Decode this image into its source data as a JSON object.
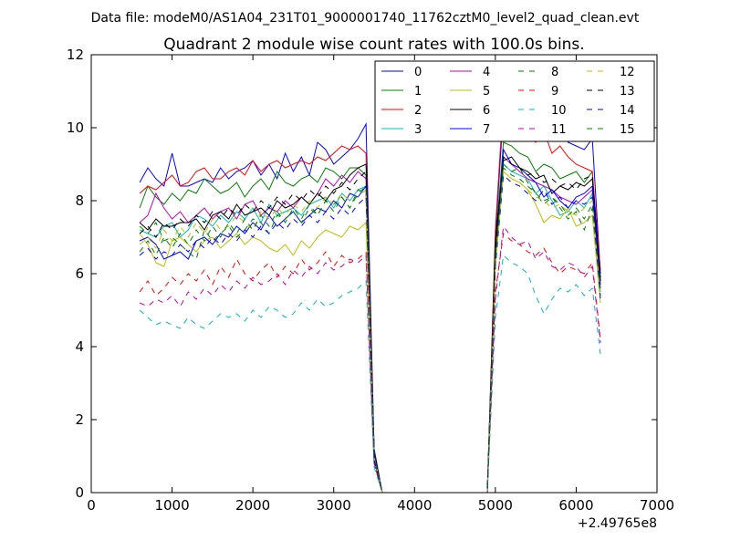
{
  "header_text": "Data file: modeM0/AS1A04_231T01_9000001740_11762cztM0_level2_quad_clean.evt",
  "chart_data": {
    "type": "line",
    "title": "Quadrant 2 module wise count rates with 100.0s bins.",
    "xlabel": "",
    "ylabel": "",
    "x_offset_label": "+2.49765e8",
    "xlim": [
      0,
      7000
    ],
    "ylim": [
      0,
      12
    ],
    "x_ticks": [
      0,
      1000,
      2000,
      3000,
      4000,
      5000,
      6000,
      7000
    ],
    "y_ticks": [
      0,
      2,
      4,
      6,
      8,
      10,
      12
    ],
    "grid": false,
    "legend_placement": "top-right",
    "legend_columns": 4,
    "x": [
      600,
      700,
      800,
      900,
      1000,
      1100,
      1200,
      1300,
      1400,
      1500,
      1600,
      1700,
      1800,
      1900,
      2000,
      2100,
      2200,
      2300,
      2400,
      2500,
      2600,
      2700,
      2800,
      2900,
      3000,
      3100,
      3200,
      3300,
      3400,
      3500,
      3600,
      3700,
      3800,
      3900,
      4000,
      4100,
      4200,
      4300,
      4400,
      4500,
      4600,
      4700,
      4800,
      4900,
      5000,
      5100,
      5200,
      5300,
      5400,
      5500,
      5600,
      5700,
      5800,
      5900,
      6000,
      6100,
      6200,
      6300
    ],
    "series": [
      {
        "name": "0",
        "color": "#0000ff",
        "dash": "solid",
        "values": [
          8.5,
          8.9,
          8.6,
          8.4,
          9.3,
          8.4,
          8.4,
          8.5,
          8.6,
          8.5,
          8.9,
          8.6,
          8.8,
          8.9,
          9.1,
          8.7,
          9.0,
          8.6,
          9.3,
          8.8,
          9.2,
          8.7,
          9.6,
          9.4,
          9.0,
          9.2,
          9.4,
          9.7,
          10.1,
          1.2,
          0,
          0,
          0,
          0,
          0,
          0,
          0,
          0,
          0,
          0,
          0,
          0,
          0,
          0,
          7.0,
          10.5,
          10.4,
          10.2,
          9.8,
          10.1,
          10.6,
          10.1,
          10.2,
          9.6,
          9.5,
          9.4,
          9.7,
          6.0
        ]
      },
      {
        "name": "1",
        "color": "#008000",
        "dash": "solid",
        "values": [
          7.8,
          8.4,
          8.1,
          7.9,
          8.2,
          8.0,
          8.3,
          8.2,
          8.6,
          8.4,
          8.2,
          8.3,
          8.5,
          8.1,
          8.4,
          8.6,
          8.3,
          8.8,
          8.5,
          8.4,
          8.6,
          8.7,
          8.5,
          8.9,
          8.8,
          8.6,
          8.9,
          8.9,
          8.7,
          1.0,
          0,
          0,
          0,
          0,
          0,
          0,
          0,
          0,
          0,
          0,
          0,
          0,
          0,
          0,
          6.8,
          9.6,
          9.5,
          9.3,
          9.2,
          8.8,
          9.0,
          8.9,
          8.6,
          8.7,
          8.8,
          8.5,
          8.8,
          5.8
        ]
      },
      {
        "name": "2",
        "color": "#ff0000",
        "dash": "solid",
        "values": [
          8.2,
          8.4,
          8.3,
          8.5,
          8.7,
          8.4,
          8.5,
          8.8,
          8.9,
          8.6,
          8.6,
          8.8,
          8.9,
          8.7,
          9.1,
          8.8,
          9.0,
          9.1,
          8.9,
          9.0,
          9.1,
          9.0,
          9.2,
          9.1,
          9.3,
          9.5,
          9.4,
          9.5,
          9.3,
          1.1,
          0,
          0,
          0,
          0,
          0,
          0,
          0,
          0,
          0,
          0,
          0,
          0,
          0,
          0,
          7.2,
          10.8,
          10.6,
          10.0,
          9.8,
          9.6,
          9.9,
          9.3,
          9.5,
          9.2,
          9.0,
          8.9,
          8.8,
          6.1
        ]
      },
      {
        "name": "3",
        "color": "#00bfbf",
        "dash": "solid",
        "values": [
          7.2,
          7.1,
          7.0,
          7.3,
          7.4,
          7.0,
          7.2,
          7.6,
          7.5,
          7.3,
          7.6,
          7.4,
          7.7,
          7.5,
          7.8,
          7.4,
          7.9,
          7.6,
          7.7,
          7.8,
          7.6,
          7.9,
          8.0,
          8.1,
          7.8,
          8.2,
          8.0,
          8.3,
          8.4,
          1.0,
          0,
          0,
          0,
          0,
          0,
          0,
          0,
          0,
          0,
          0,
          0,
          0,
          0,
          0,
          6.5,
          9.0,
          8.8,
          8.7,
          8.6,
          8.2,
          8.4,
          8.0,
          7.6,
          7.7,
          8.0,
          7.8,
          8.2,
          5.5
        ]
      },
      {
        "name": "4",
        "color": "#bf00bf",
        "dash": "solid",
        "values": [
          7.4,
          7.6,
          8.2,
          7.8,
          7.5,
          7.7,
          7.4,
          7.6,
          7.8,
          7.5,
          7.7,
          7.8,
          7.5,
          7.9,
          8.0,
          7.6,
          7.8,
          7.7,
          8.0,
          7.8,
          8.1,
          7.9,
          8.2,
          8.6,
          8.4,
          8.7,
          8.5,
          8.8,
          8.6,
          1.0,
          0,
          0,
          0,
          0,
          0,
          0,
          0,
          0,
          0,
          0,
          0,
          0,
          0,
          0,
          6.6,
          9.2,
          9.0,
          8.8,
          8.6,
          8.5,
          8.4,
          8.3,
          8.1,
          8.0,
          7.9,
          8.1,
          8.3,
          5.6
        ]
      },
      {
        "name": "5",
        "color": "#bfbf00",
        "dash": "solid",
        "values": [
          7.1,
          6.8,
          6.3,
          6.2,
          6.9,
          7.0,
          6.8,
          6.6,
          6.9,
          7.0,
          6.7,
          6.9,
          7.1,
          6.8,
          7.0,
          6.9,
          6.7,
          6.6,
          6.8,
          6.5,
          6.9,
          6.7,
          7.0,
          7.2,
          7.1,
          7.0,
          7.3,
          7.2,
          7.4,
          0.9,
          0,
          0,
          0,
          0,
          0,
          0,
          0,
          0,
          0,
          0,
          0,
          0,
          0,
          0,
          6.2,
          8.8,
          8.6,
          8.5,
          8.3,
          7.9,
          7.4,
          7.6,
          7.5,
          7.8,
          7.3,
          7.4,
          7.6,
          5.2
        ]
      },
      {
        "name": "6",
        "color": "#000000",
        "dash": "solid",
        "values": [
          7.4,
          7.2,
          7.5,
          7.3,
          7.3,
          7.4,
          7.4,
          7.5,
          7.2,
          7.6,
          7.7,
          7.5,
          7.9,
          7.6,
          7.7,
          7.8,
          7.6,
          8.0,
          7.8,
          7.9,
          8.1,
          7.9,
          8.2,
          8.0,
          8.3,
          8.4,
          8.7,
          8.9,
          9.0,
          1.1,
          0,
          0,
          0,
          0,
          0,
          0,
          0,
          0,
          0,
          0,
          0,
          0,
          0,
          0,
          6.9,
          9.1,
          9.2,
          8.9,
          8.8,
          8.6,
          8.7,
          8.2,
          8.4,
          8.3,
          8.5,
          8.4,
          8.6,
          5.9
        ]
      },
      {
        "name": "7",
        "color": "#0000ff",
        "dash": "solid",
        "values": [
          6.9,
          7.0,
          6.8,
          6.4,
          6.5,
          6.6,
          6.4,
          6.9,
          7.0,
          6.8,
          7.1,
          7.0,
          7.3,
          7.1,
          7.4,
          7.2,
          7.6,
          7.3,
          7.5,
          7.7,
          7.4,
          7.6,
          7.8,
          7.7,
          8.0,
          7.8,
          8.2,
          8.1,
          8.4,
          1.0,
          0,
          0,
          0,
          0,
          0,
          0,
          0,
          0,
          0,
          0,
          0,
          0,
          0,
          0,
          6.4,
          9.4,
          9.0,
          8.9,
          8.7,
          8.5,
          8.1,
          8.3,
          8.0,
          7.8,
          8.1,
          8.2,
          8.4,
          5.7
        ]
      },
      {
        "name": "8",
        "color": "#008000",
        "dash": "dashed",
        "values": [
          7.3,
          7.1,
          7.4,
          6.9,
          7.0,
          6.8,
          6.6,
          6.4,
          7.2,
          6.9,
          7.1,
          7.3,
          7.0,
          7.2,
          7.5,
          7.4,
          7.1,
          7.6,
          7.5,
          7.7,
          7.4,
          7.8,
          7.6,
          8.0,
          7.9,
          8.1,
          7.8,
          8.3,
          8.2,
          0.9,
          0,
          0,
          0,
          0,
          0,
          0,
          0,
          0,
          0,
          0,
          0,
          0,
          0,
          0,
          6.5,
          9.0,
          8.8,
          8.9,
          8.5,
          8.2,
          7.9,
          8.1,
          7.8,
          7.5,
          7.7,
          7.2,
          7.8,
          5.5
        ]
      },
      {
        "name": "9",
        "color": "#ff0000",
        "dash": "dashed",
        "values": [
          5.5,
          5.8,
          5.4,
          5.6,
          5.9,
          5.7,
          6.0,
          5.8,
          6.1,
          5.7,
          6.2,
          5.9,
          6.4,
          6.0,
          5.8,
          6.1,
          6.3,
          5.9,
          6.2,
          6.0,
          6.4,
          6.1,
          6.3,
          6.6,
          6.2,
          6.5,
          6.3,
          6.4,
          6.6,
          0.8,
          0,
          0,
          0,
          0,
          0,
          0,
          0,
          0,
          0,
          0,
          0,
          0,
          0,
          0,
          5.5,
          7.1,
          6.9,
          6.8,
          6.6,
          6.5,
          6.7,
          6.3,
          6.0,
          6.2,
          6.1,
          6.0,
          6.3,
          4.2
        ]
      },
      {
        "name": "10",
        "color": "#00bfbf",
        "dash": "dashed",
        "values": [
          5.0,
          4.8,
          4.6,
          4.7,
          4.6,
          4.5,
          4.8,
          4.6,
          4.5,
          4.7,
          4.9,
          4.8,
          4.9,
          4.7,
          5.0,
          4.8,
          5.1,
          5.0,
          4.8,
          4.9,
          5.2,
          5.0,
          5.3,
          5.1,
          5.2,
          5.4,
          5.5,
          5.6,
          5.8,
          0.7,
          0,
          0,
          0,
          0,
          0,
          0,
          0,
          0,
          0,
          0,
          0,
          0,
          0,
          0,
          4.8,
          6.5,
          6.3,
          6.2,
          6.0,
          5.4,
          4.9,
          5.3,
          5.6,
          5.5,
          5.7,
          5.4,
          5.6,
          3.8
        ]
      },
      {
        "name": "11",
        "color": "#bf00bf",
        "dash": "dashed",
        "values": [
          5.2,
          5.1,
          5.3,
          5.2,
          5.4,
          5.1,
          5.5,
          5.3,
          5.6,
          5.4,
          5.7,
          5.5,
          5.8,
          5.6,
          5.9,
          5.7,
          5.8,
          6.0,
          5.7,
          6.1,
          5.9,
          6.2,
          6.0,
          6.3,
          6.1,
          6.2,
          6.4,
          6.3,
          6.5,
          0.8,
          0,
          0,
          0,
          0,
          0,
          0,
          0,
          0,
          0,
          0,
          0,
          0,
          0,
          0,
          5.3,
          7.3,
          7.0,
          6.8,
          6.9,
          6.4,
          6.6,
          6.2,
          6.1,
          6.3,
          6.2,
          5.9,
          6.2,
          4.1
        ]
      },
      {
        "name": "12",
        "color": "#bfbf00",
        "dash": "dashed",
        "values": [
          6.8,
          7.0,
          6.7,
          7.2,
          6.9,
          7.3,
          7.0,
          7.4,
          7.1,
          7.5,
          7.2,
          7.3,
          7.6,
          7.4,
          7.2,
          7.7,
          7.5,
          7.8,
          7.6,
          7.9,
          7.7,
          8.0,
          7.8,
          8.1,
          7.9,
          8.2,
          8.0,
          8.1,
          8.3,
          1.0,
          0,
          0,
          0,
          0,
          0,
          0,
          0,
          0,
          0,
          0,
          0,
          0,
          0,
          0,
          6.3,
          8.8,
          8.6,
          8.5,
          8.3,
          8.1,
          8.0,
          7.8,
          7.9,
          7.7,
          7.6,
          7.8,
          8.0,
          5.4
        ]
      },
      {
        "name": "13",
        "color": "#000000",
        "dash": "dashed",
        "values": [
          7.1,
          7.3,
          7.0,
          7.4,
          7.2,
          7.5,
          7.3,
          7.6,
          7.4,
          7.7,
          7.5,
          7.8,
          7.6,
          7.9,
          7.7,
          8.0,
          7.8,
          8.1,
          7.9,
          8.2,
          8.0,
          8.3,
          8.1,
          8.4,
          8.2,
          8.5,
          8.3,
          8.6,
          8.8,
          1.1,
          0,
          0,
          0,
          0,
          0,
          0,
          0,
          0,
          0,
          0,
          0,
          0,
          0,
          0,
          6.7,
          9.2,
          9.0,
          8.9,
          8.7,
          8.8,
          8.5,
          8.6,
          8.4,
          8.5,
          8.3,
          8.6,
          8.7,
          5.8
        ]
      },
      {
        "name": "14",
        "color": "#0000ff",
        "dash": "dashed",
        "values": [
          6.5,
          6.7,
          6.4,
          6.6,
          6.5,
          6.8,
          6.6,
          6.9,
          6.7,
          7.0,
          6.8,
          7.1,
          6.9,
          7.2,
          7.0,
          7.3,
          7.1,
          7.4,
          7.2,
          7.5,
          7.3,
          7.6,
          7.4,
          7.7,
          7.5,
          7.8,
          7.6,
          7.9,
          8.1,
          0.9,
          0,
          0,
          0,
          0,
          0,
          0,
          0,
          0,
          0,
          0,
          0,
          0,
          0,
          0,
          6.2,
          8.7,
          8.5,
          8.4,
          8.2,
          8.0,
          8.3,
          7.9,
          8.1,
          7.8,
          8.0,
          7.9,
          8.1,
          5.3
        ]
      },
      {
        "name": "15",
        "color": "#008000",
        "dash": "dashed",
        "values": [
          6.6,
          6.9,
          6.5,
          7.0,
          6.7,
          7.1,
          6.8,
          7.2,
          6.9,
          7.3,
          7.0,
          7.4,
          7.1,
          7.5,
          7.2,
          7.6,
          7.3,
          7.7,
          7.4,
          7.8,
          7.5,
          7.9,
          7.6,
          8.0,
          7.7,
          8.1,
          7.8,
          8.2,
          8.4,
          1.0,
          0,
          0,
          0,
          0,
          0,
          0,
          0,
          0,
          0,
          0,
          0,
          0,
          0,
          0,
          6.4,
          8.9,
          8.7,
          8.6,
          8.4,
          8.2,
          8.0,
          8.1,
          7.9,
          7.6,
          7.8,
          7.5,
          7.9,
          5.4
        ]
      }
    ]
  }
}
